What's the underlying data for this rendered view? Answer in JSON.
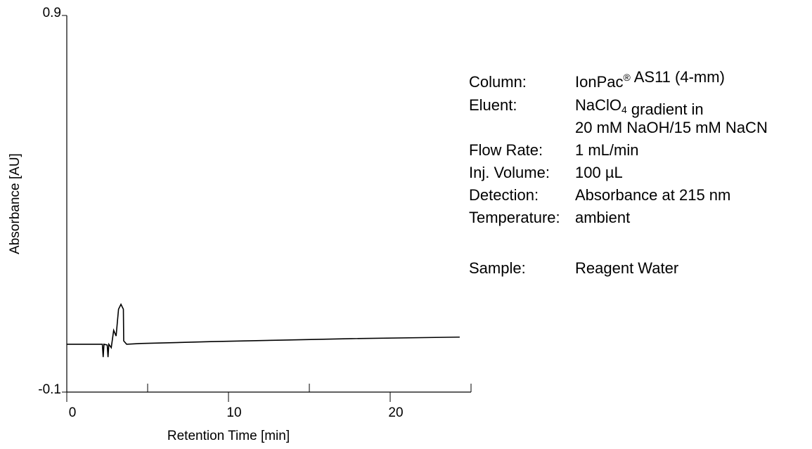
{
  "chart_data": {
    "type": "line",
    "x_label": "Retention Time [min]",
    "y_label": "Absorbance [AU]",
    "xlim": [
      0,
      25
    ],
    "xticks": [
      0,
      10,
      20
    ],
    "minor_xticks": [
      5,
      15,
      25
    ],
    "ylim": [
      -0.1,
      0.9
    ],
    "yticks": [
      -0.1,
      0.9
    ],
    "color": "#000000",
    "x": [
      0,
      2.2,
      2.25,
      2.3,
      2.5,
      2.55,
      2.6,
      2.75,
      2.9,
      3.05,
      3.2,
      3.35,
      3.5,
      3.52,
      3.7,
      4.6,
      8.9,
      13.3,
      17.6,
      24.3
    ],
    "values": [
      0.027,
      0.027,
      -0.007,
      0.027,
      0.025,
      -0.007,
      0.027,
      0.018,
      0.064,
      0.049,
      0.12,
      0.133,
      0.12,
      0.036,
      0.027,
      0.029,
      0.034,
      0.038,
      0.042,
      0.046
    ],
    "annotations": [
      {
        "label": "Column:",
        "value": [
          "IonPac",
          {
            "sup": "®"
          },
          " AS11 (4-mm)"
        ]
      },
      {
        "label": "Eluent:",
        "value": [
          "NaClO",
          {
            "sub": "4"
          },
          " gradient  in"
        ]
      },
      {
        "value": [
          "20 mM NaOH/15 mM NaCN"
        ]
      },
      {
        "label": "Flow Rate:",
        "value": [
          "1 mL/min"
        ]
      },
      {
        "label": "Inj. Volume:",
        "value": [
          "100 µL"
        ]
      },
      {
        "label": "Detection:",
        "value": [
          "Absorbance at 215 nm"
        ]
      },
      {
        "label": "Temperature:",
        "value": [
          "ambient"
        ]
      },
      {
        "label": "Sample:",
        "value": [
          "Reagent Water"
        ]
      }
    ]
  }
}
